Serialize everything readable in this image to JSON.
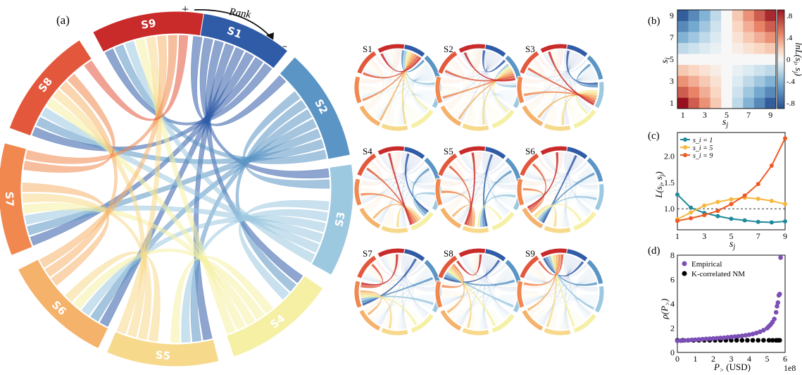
{
  "panel_letters": {
    "a": "(a)",
    "b": "(b)",
    "c": "(c)",
    "d": "(d)"
  },
  "rank_annotation": {
    "plus": "+",
    "label": "Rank",
    "minus": "−"
  },
  "segment_colors": [
    "#2f5ba7",
    "#5b95c5",
    "#9cc9e0",
    "#f5f0a4",
    "#f7d98b",
    "#f5b26b",
    "#f0884f",
    "#e3583d",
    "#c92a2a"
  ],
  "chart_data": [
    {
      "type": "chord",
      "panel": "(a)",
      "segments": [
        "S1",
        "S2",
        "S3",
        "S4",
        "S5",
        "S6",
        "S7",
        "S8",
        "S9"
      ],
      "order": "clockwise from top, ranked + to −"
    },
    {
      "type": "chord",
      "panel": "(a) small multiples",
      "titles": [
        "S1",
        "S2",
        "S3",
        "S4",
        "S5",
        "S6",
        "S7",
        "S8",
        "S9"
      ]
    },
    {
      "type": "heatmap",
      "panel": "(b)",
      "xlabel": "s_j",
      "ylabel": "s_i",
      "x_ticks": [
        "1",
        "3",
        "5",
        "7",
        "9"
      ],
      "y_ticks": [
        "1",
        "3",
        "5",
        "7",
        "9"
      ],
      "colorbar_label": "ln L(s_i, s_j)",
      "colorbar_ticks": [
        ".8",
        ".4",
        "0",
        "-.4",
        "-.8"
      ],
      "colorbar_range": [
        -0.9,
        0.9
      ],
      "colormap": "RdBu_r",
      "grid_size": 9
    },
    {
      "type": "line",
      "panel": "(c)",
      "xlabel": "s_j",
      "ylabel": "L(s_i, s_j)",
      "xlim": [
        1,
        9
      ],
      "ylim": [
        0.6,
        2.45
      ],
      "x_ticks": [
        1,
        3,
        5,
        7,
        9
      ],
      "y_ticks": [
        1.0,
        1.5,
        2.0
      ],
      "y_tick_labels": [
        "1.0",
        "1.5",
        "2.0"
      ],
      "reference_line": 1.0,
      "legend_position": "top-left",
      "series": [
        {
          "name": "s_i = 1",
          "color": "#1f8a9a",
          "x": [
            1,
            2,
            3,
            4,
            5,
            6,
            7,
            8,
            9
          ],
          "y": [
            1.27,
            1.02,
            0.92,
            0.86,
            0.81,
            0.78,
            0.75,
            0.74,
            0.76
          ]
        },
        {
          "name": "s_i = 5",
          "color": "#f6b73c",
          "x": [
            1,
            2,
            3,
            4,
            5,
            6,
            7,
            8,
            9
          ],
          "y": [
            0.8,
            0.93,
            1.06,
            1.13,
            1.18,
            1.21,
            1.19,
            1.15,
            1.09
          ]
        },
        {
          "name": "s_i = 9",
          "color": "#ee5a24",
          "x": [
            1,
            2,
            3,
            4,
            5,
            6,
            7,
            8,
            9
          ],
          "y": [
            0.77,
            0.82,
            0.88,
            0.96,
            1.09,
            1.25,
            1.47,
            1.82,
            2.34
          ]
        }
      ]
    },
    {
      "type": "scatter",
      "panel": "(d)",
      "xlabel": "P_> (USD)",
      "ylabel": "ρ(P_>)",
      "x_offset_label": "1e8",
      "xlim": [
        0,
        6
      ],
      "ylim": [
        0,
        8
      ],
      "x_ticks": [
        0,
        1,
        2,
        3,
        4,
        5,
        6
      ],
      "y_ticks": [
        0,
        2,
        4,
        6,
        8
      ],
      "legend_position": "top-left",
      "series": [
        {
          "name": "Empirical",
          "color": "#7b4fb5",
          "x": [
            0.0,
            0.2,
            0.4,
            0.6,
            0.8,
            1.0,
            1.2,
            1.4,
            1.6,
            1.8,
            2.0,
            2.2,
            2.4,
            2.6,
            2.8,
            3.0,
            3.2,
            3.4,
            3.6,
            3.8,
            4.0,
            4.2,
            4.4,
            4.6,
            4.8,
            5.0,
            5.1,
            5.2,
            5.3,
            5.4,
            5.5,
            5.55,
            5.6,
            5.65,
            5.7,
            5.75
          ],
          "y": [
            0.95,
            0.97,
            0.99,
            1.01,
            1.03,
            1.05,
            1.07,
            1.09,
            1.11,
            1.13,
            1.15,
            1.17,
            1.19,
            1.21,
            1.24,
            1.27,
            1.3,
            1.33,
            1.37,
            1.41,
            1.46,
            1.52,
            1.6,
            1.7,
            1.83,
            2.0,
            2.15,
            2.3,
            2.5,
            2.75,
            3.3,
            3.8,
            4.1,
            4.7,
            4.8,
            7.8
          ]
        },
        {
          "name": "K-correlated NM",
          "color": "#000000",
          "x": [
            0.0,
            0.3,
            0.6,
            0.9,
            1.2,
            1.5,
            1.8,
            2.1,
            2.4,
            2.7,
            3.0,
            3.3,
            3.6,
            3.9,
            4.2,
            4.5,
            4.8,
            5.1,
            5.3,
            5.5,
            5.6,
            5.7
          ],
          "y": [
            1,
            1,
            1,
            1,
            1,
            1,
            1,
            1,
            1,
            1,
            1,
            1,
            1,
            1,
            1,
            1,
            1,
            1,
            1,
            1,
            1,
            1
          ]
        }
      ]
    }
  ]
}
